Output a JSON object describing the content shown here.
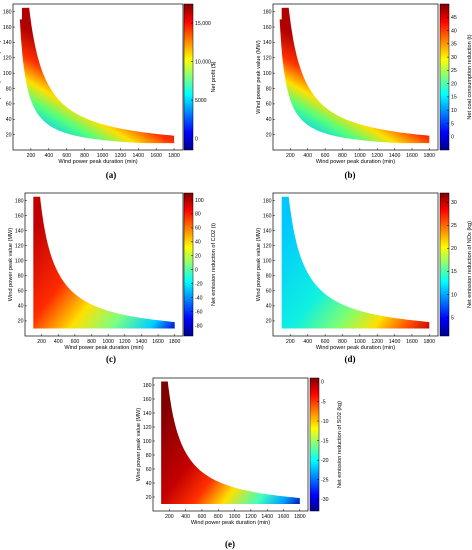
{
  "colors": {
    "colormap": "jet",
    "jet_stops": [
      "#00008f",
      "#0000ff",
      "#00ffff",
      "#ffff00",
      "#ff0000",
      "#800000"
    ],
    "frame": "#000000",
    "background": "#ffffff"
  },
  "chart_data": [
    {
      "type": "heatmap",
      "panel_label": "(a)",
      "xlabel": "Wind power peak duration (min)",
      "ylabel": "Wind power peak value (MW)",
      "colorbar_label": "Net profit ($)",
      "xticks": [
        "200",
        "400",
        "600",
        "800",
        "1000",
        "1200",
        "1400",
        "1600",
        "1800"
      ],
      "yticks": [
        "20",
        "40",
        "60",
        "80",
        "100",
        "120",
        "140",
        "160",
        "180"
      ],
      "cbar_ticks": [
        "0",
        "5000",
        "10,000",
        "15,000"
      ],
      "xlim": [
        0,
        1900
      ],
      "ylim": [
        0,
        190
      ],
      "clim": [
        -1500,
        17500
      ],
      "cbar_stops": [
        0.0,
        0.12,
        0.38,
        0.62,
        0.88,
        1.0
      ],
      "color_gradient": "increases with peak value and duration",
      "region": "hyperbolic band: duration x value between about 13,000 and 34,000 MW·min; duration 100–1800 min; value 10–185 MW",
      "grid": false,
      "legend": "none"
    },
    {
      "type": "heatmap",
      "panel_label": "(b)",
      "xlabel": "Wind power peak duration (min)",
      "ylabel": "Wind power peak value (MW)",
      "colorbar_label": "Net coal consumption reduction (t)",
      "xticks": [
        "200",
        "400",
        "600",
        "800",
        "1000",
        "1200",
        "1400",
        "1600",
        "1800"
      ],
      "yticks": [
        "20",
        "40",
        "60",
        "80",
        "100",
        "120",
        "140",
        "160",
        "180"
      ],
      "cbar_ticks": [
        "0",
        "5",
        "10",
        "15",
        "20",
        "25",
        "30",
        "35",
        "40",
        "45"
      ],
      "xlim": [
        0,
        1900
      ],
      "ylim": [
        0,
        190
      ],
      "clim": [
        -5,
        50
      ],
      "cbar_stops": [
        0.0,
        0.12,
        0.38,
        0.62,
        0.88,
        1.0
      ],
      "color_gradient": "increases with peak value and duration",
      "region": "hyperbolic band: duration x value between about 13,000 and 34,000 MW·min; duration 100–1800 min; value 10–185 MW",
      "grid": false,
      "legend": "none"
    },
    {
      "type": "heatmap",
      "panel_label": "(c)",
      "xlabel": "Wind power peak duration (min)",
      "ylabel": "Wind power peak value (MW)",
      "colorbar_label": "Net emission reduction of CO2 (t)",
      "xticks": [
        "200",
        "400",
        "600",
        "800",
        "1000",
        "1200",
        "1400",
        "1600",
        "1800"
      ],
      "yticks": [
        "20",
        "40",
        "60",
        "80",
        "100",
        "120",
        "140",
        "160",
        "180"
      ],
      "cbar_ticks": [
        "100",
        "80",
        "60",
        "40",
        "20",
        "0",
        "-20",
        "-40",
        "-60",
        "-80"
      ],
      "xlim": [
        0,
        1900
      ],
      "ylim": [
        0,
        190
      ],
      "clim": [
        -95,
        110
      ],
      "cbar_stops": [
        0.0,
        0.12,
        0.38,
        0.62,
        0.88,
        1.0
      ],
      "color_gradient": "increases with peak value, decreases with duration",
      "region": "area under hyperbola: duration x value up to about 34,000 MW·min; value 10–185 MW; duration 100–1800 min",
      "grid": false,
      "legend": "none"
    },
    {
      "type": "heatmap",
      "panel_label": "(d)",
      "xlabel": "Wind power peak duration (min)",
      "ylabel": "Wind power peak value (MW)",
      "colorbar_label": "Net emission reduction of NOx (kg)",
      "xticks": [
        "200",
        "400",
        "600",
        "800",
        "1000",
        "1200",
        "1400",
        "1600",
        "1800"
      ],
      "yticks": [
        "20",
        "40",
        "60",
        "80",
        "100",
        "120",
        "140",
        "160",
        "180"
      ],
      "cbar_ticks": [
        "5",
        "10",
        "15",
        "20",
        "25",
        "30"
      ],
      "xlim": [
        0,
        1900
      ],
      "ylim": [
        0,
        190
      ],
      "clim": [
        1,
        32
      ],
      "cbar_stops": [
        0.0,
        0.12,
        0.38,
        0.62,
        0.88,
        1.0
      ],
      "color_gradient": "increases with duration",
      "region": "area under hyperbola: duration x value up to about 34,000 MW·min; value 10–185 MW; duration 100–1800 min",
      "grid": false,
      "legend": "none"
    },
    {
      "type": "heatmap",
      "panel_label": "(e)",
      "xlabel": "Wind power peak duration (min)",
      "ylabel": "Wind power peak value (MW)",
      "colorbar_label": "Net emission reduction of SO2 (kg)",
      "xticks": [
        "200",
        "400",
        "600",
        "800",
        "1000",
        "1200",
        "1400",
        "1600",
        "1800"
      ],
      "yticks": [
        "20",
        "40",
        "60",
        "80",
        "100",
        "120",
        "140",
        "160",
        "180"
      ],
      "cbar_ticks": [
        "0",
        "-5",
        "-10",
        "-15",
        "-20",
        "-25",
        "-30"
      ],
      "xlim": [
        0,
        1900
      ],
      "ylim": [
        0,
        190
      ],
      "clim": [
        -33,
        1
      ],
      "cbar_stops": [
        0.0,
        0.12,
        0.38,
        0.62,
        0.88,
        1.0
      ],
      "color_gradient": "decreases with duration",
      "region": "area under hyperbola: duration x value up to about 34,000 MW·min; value 10–185 MW; duration 100–1800 min",
      "grid": false,
      "legend": "none"
    }
  ]
}
